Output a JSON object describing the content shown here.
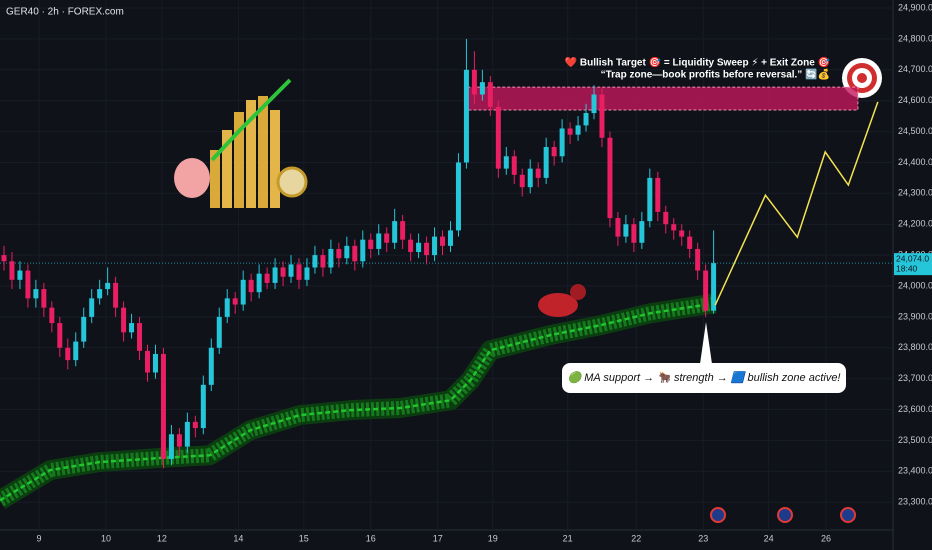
{
  "chart_data": {
    "type": "candlestick",
    "title": "GER40 · 2h · FOREX.com",
    "up_color": "#26c6da",
    "down_color": "#e91e63",
    "candles": [
      [
        24100,
        24130,
        24050,
        24080
      ],
      [
        24080,
        24110,
        23990,
        24020
      ],
      [
        24020,
        24080,
        23990,
        24050
      ],
      [
        24050,
        24070,
        23930,
        23960
      ],
      [
        23960,
        24020,
        23930,
        23990
      ],
      [
        23990,
        24010,
        23900,
        23930
      ],
      [
        23930,
        23950,
        23850,
        23880
      ],
      [
        23880,
        23900,
        23770,
        23800
      ],
      [
        23800,
        23830,
        23730,
        23760
      ],
      [
        23760,
        23850,
        23740,
        23820
      ],
      [
        23820,
        23930,
        23800,
        23900
      ],
      [
        23900,
        23990,
        23880,
        23960
      ],
      [
        23960,
        24020,
        23940,
        23990
      ],
      [
        23990,
        24060,
        23970,
        24010
      ],
      [
        24010,
        24030,
        23900,
        23930
      ],
      [
        23930,
        23950,
        23820,
        23850
      ],
      [
        23850,
        23910,
        23830,
        23880
      ],
      [
        23880,
        23900,
        23760,
        23790
      ],
      [
        23790,
        23810,
        23690,
        23720
      ],
      [
        23720,
        23810,
        23700,
        23780
      ],
      [
        23780,
        23800,
        23410,
        23440
      ],
      [
        23440,
        23550,
        23420,
        23520
      ],
      [
        23520,
        23540,
        23450,
        23480
      ],
      [
        23480,
        23590,
        23460,
        23560
      ],
      [
        23560,
        23580,
        23510,
        23540
      ],
      [
        23540,
        23710,
        23520,
        23680
      ],
      [
        23680,
        23830,
        23660,
        23800
      ],
      [
        23800,
        23930,
        23780,
        23900
      ],
      [
        23900,
        23990,
        23880,
        23960
      ],
      [
        23960,
        23980,
        23910,
        23940
      ],
      [
        23940,
        24050,
        23920,
        24020
      ],
      [
        24020,
        24040,
        23950,
        23980
      ],
      [
        23980,
        24070,
        23960,
        24040
      ],
      [
        24040,
        24060,
        23990,
        24010
      ],
      [
        24010,
        24090,
        23990,
        24060
      ],
      [
        24060,
        24080,
        24000,
        24030
      ],
      [
        24030,
        24100,
        24010,
        24070
      ],
      [
        24070,
        24090,
        23990,
        24020
      ],
      [
        24020,
        24090,
        24000,
        24060
      ],
      [
        24060,
        24130,
        24040,
        24100
      ],
      [
        24100,
        24120,
        24030,
        24060
      ],
      [
        24060,
        24150,
        24040,
        24120
      ],
      [
        24120,
        24140,
        24060,
        24090
      ],
      [
        24090,
        24160,
        24070,
        24130
      ],
      [
        24130,
        24150,
        24050,
        24080
      ],
      [
        24080,
        24180,
        24060,
        24150
      ],
      [
        24150,
        24170,
        24090,
        24120
      ],
      [
        24120,
        24200,
        24100,
        24170
      ],
      [
        24170,
        24190,
        24110,
        24140
      ],
      [
        24140,
        24250,
        24120,
        24210
      ],
      [
        24210,
        24230,
        24120,
        24150
      ],
      [
        24150,
        24170,
        24080,
        24110
      ],
      [
        24110,
        24170,
        24090,
        24140
      ],
      [
        24140,
        24160,
        24070,
        24100
      ],
      [
        24100,
        24190,
        24080,
        24160
      ],
      [
        24160,
        24180,
        24100,
        24130
      ],
      [
        24130,
        24210,
        24110,
        24180
      ],
      [
        24180,
        24430,
        24160,
        24400
      ],
      [
        24400,
        24800,
        24380,
        24700
      ],
      [
        24700,
        24760,
        24590,
        24620
      ],
      [
        24620,
        24700,
        24600,
        24660
      ],
      [
        24660,
        24680,
        24550,
        24580
      ],
      [
        24580,
        24600,
        24350,
        24380
      ],
      [
        24380,
        24450,
        24360,
        24420
      ],
      [
        24420,
        24440,
        24330,
        24360
      ],
      [
        24360,
        24380,
        24290,
        24320
      ],
      [
        24320,
        24410,
        24300,
        24380
      ],
      [
        24380,
        24400,
        24320,
        24350
      ],
      [
        24350,
        24480,
        24330,
        24450
      ],
      [
        24450,
        24470,
        24390,
        24420
      ],
      [
        24420,
        24540,
        24400,
        24510
      ],
      [
        24510,
        24530,
        24460,
        24490
      ],
      [
        24490,
        24550,
        24470,
        24520
      ],
      [
        24520,
        24590,
        24500,
        24560
      ],
      [
        24560,
        24650,
        24540,
        24620
      ],
      [
        24620,
        24640,
        24450,
        24480
      ],
      [
        24480,
        24500,
        24190,
        24220
      ],
      [
        24220,
        24240,
        24130,
        24160
      ],
      [
        24160,
        24230,
        24140,
        24200
      ],
      [
        24200,
        24220,
        24110,
        24140
      ],
      [
        24140,
        24240,
        24120,
        24210
      ],
      [
        24210,
        24380,
        24190,
        24350
      ],
      [
        24350,
        24370,
        24210,
        24240
      ],
      [
        24240,
        24260,
        24170,
        24200
      ],
      [
        24200,
        24220,
        24150,
        24180
      ],
      [
        24180,
        24200,
        24130,
        24160
      ],
      [
        24160,
        24180,
        24090,
        24120
      ],
      [
        24120,
        24140,
        24020,
        24050
      ],
      [
        24050,
        24070,
        23900,
        23920
      ],
      [
        23920,
        24180,
        23910,
        24074
      ]
    ],
    "moving_average": {
      "color": "#22c32e",
      "x": [
        0,
        6.3,
        12.5,
        20,
        26.3,
        31.4,
        37.6,
        43.9,
        50.2,
        56.5,
        59,
        61.5,
        69,
        75.3,
        81.6,
        89.7
      ],
      "values": [
        23306,
        23404,
        23430,
        23443,
        23452,
        23533,
        23582,
        23598,
        23605,
        23630,
        23695,
        23792,
        23841,
        23873,
        23912,
        23944
      ]
    },
    "projection": {
      "color": "#f5e351",
      "x": [
        89.7,
        96,
        100,
        103.5,
        106.4,
        110.1
      ],
      "values": [
        23938,
        24294,
        24158,
        24434,
        24327,
        24596
      ]
    },
    "zone": {
      "color": "#c2185b",
      "xlim": [
        58.6,
        107.6
      ],
      "ylim": [
        24570,
        24644
      ]
    },
    "last_price": {
      "value": 24074,
      "label": "24,074.0",
      "countdown": "18:40"
    },
    "annotations": [
      "❤️ Bullish Target 🎯 = Liquidity Sweep ⚡ + Exit Zone 🎯",
      "“Trap zone—book profits before reversal.” 🔄💰",
      "🟢 MA support → 🐂 strength → 🟦 bullish zone active!"
    ],
    "xlim": [
      0,
      112
    ],
    "ylim": [
      23210,
      24926
    ],
    "xticks": [
      {
        "value": 4.9,
        "label": "9"
      },
      {
        "value": 13.3,
        "label": "10"
      },
      {
        "value": 20.3,
        "label": "12"
      },
      {
        "value": 29.9,
        "label": "14"
      },
      {
        "value": 38.1,
        "label": "15"
      },
      {
        "value": 46.5,
        "label": "16"
      },
      {
        "value": 54.9,
        "label": "17"
      },
      {
        "value": 61.8,
        "label": "19"
      },
      {
        "value": 71.2,
        "label": "21"
      },
      {
        "value": 79.8,
        "label": "22"
      },
      {
        "value": 88.2,
        "label": "23"
      },
      {
        "value": 96.4,
        "label": "24"
      },
      {
        "value": 103.6,
        "label": "26"
      }
    ],
    "yticks": [
      {
        "value": 23300,
        "label": "23,300.0"
      },
      {
        "value": 23400,
        "label": "23,400.0"
      },
      {
        "value": 23500,
        "label": "23,500.0"
      },
      {
        "value": 23600,
        "label": "23,600.0"
      },
      {
        "value": 23700,
        "label": "23,700.0"
      },
      {
        "value": 23800,
        "label": "23,800.0"
      },
      {
        "value": 23900,
        "label": "23,900.0"
      },
      {
        "value": 24000,
        "label": "24,000.0"
      },
      {
        "value": 24100,
        "label": "24,100.0"
      },
      {
        "value": 24200,
        "label": "24,200.0"
      },
      {
        "value": 24300,
        "label": "24,300.0"
      },
      {
        "value": 24400,
        "label": "24,400.0"
      },
      {
        "value": 24500,
        "label": "24,500.0"
      },
      {
        "value": 24600,
        "label": "24,600.0"
      },
      {
        "value": 24700,
        "label": "24,700.0"
      },
      {
        "value": 24800,
        "label": "24,800.0"
      },
      {
        "value": 24900,
        "label": "24,900.0"
      }
    ]
  }
}
